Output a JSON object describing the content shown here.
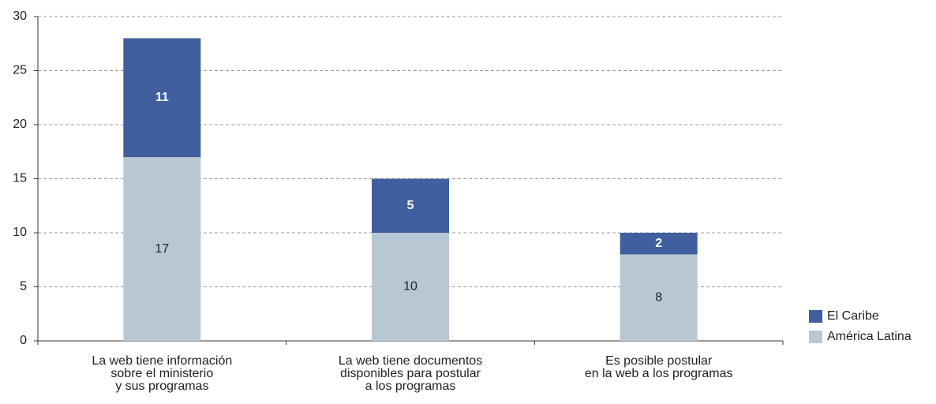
{
  "chart_data": {
    "type": "stacked_bar",
    "categories": [
      "La web tiene información\nsobre el ministerio\ny sus programas",
      "La web tiene documentos\ndisponibles para postular\na los programas",
      "Es posible postular\nen la web a los programas"
    ],
    "series": [
      {
        "name": "América Latina",
        "color": "#b8c7d4",
        "values": [
          17,
          10,
          8
        ]
      },
      {
        "name": "El Caribe",
        "color": "#3f5f9e",
        "values": [
          11,
          5,
          2
        ]
      }
    ],
    "ylim": [
      0,
      30
    ],
    "yticks": [
      0,
      5,
      10,
      15,
      20,
      25,
      30
    ],
    "grid": true,
    "legend": "lower right"
  }
}
